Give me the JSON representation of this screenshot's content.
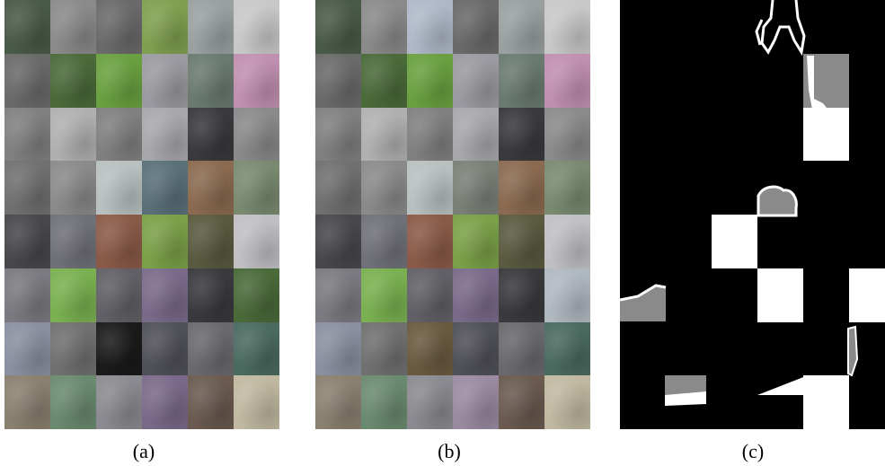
{
  "captions": {
    "a": "(a)",
    "b": "(b)",
    "c": "(c)"
  },
  "grid": {
    "rows": 8,
    "cols": 6
  },
  "patches_a": [
    "#4a5a48",
    "#8a8a8a",
    "#6a6a6a",
    "#7fa050",
    "#9aa0a0",
    "#c8c8c8",
    "#6a6a6a",
    "#4a6a3a",
    "#6aa040",
    "#9a9aa0",
    "#6a7a70",
    "#c090b0",
    "#808080",
    "#b0b0b0",
    "#808080",
    "#a8a8ac",
    "#3a3a3e",
    "#8a8a8a",
    "#707070",
    "#8a8a8a",
    "#b8c0c0",
    "#5a7078",
    "#8a6a50",
    "#7a8a70",
    "#48484c",
    "#707078",
    "#8a5a48",
    "#7aa048",
    "#5a5a40",
    "#c0c0c4",
    "#7a7a80",
    "#7ab050",
    "#606066",
    "#7a6a8a",
    "#3a3a3e",
    "#4a6a3a",
    "#8a90a0",
    "#707070",
    "#1a1a1a",
    "#505058",
    "#6a6a6e",
    "#4a6a60",
    "#8a8070",
    "#6a8a70",
    "#8a8a90",
    "#7a6a8a",
    "#6a5a50",
    "#c0b8a0"
  ],
  "patches_b": [
    "#4a5a48",
    "#8a8a8a",
    "#b0b8c8",
    "#6a6a6a",
    "#9aa0a0",
    "#c8c8c8",
    "#6a6a6a",
    "#4a6a3a",
    "#6aa040",
    "#9a9aa0",
    "#6a7a70",
    "#c090b0",
    "#808080",
    "#b0b0b0",
    "#808080",
    "#a8a8ac",
    "#3a3a3e",
    "#8a8a8a",
    "#707070",
    "#8a8a8a",
    "#b8c0c0",
    "#7a8078",
    "#8a6a50",
    "#7a8a70",
    "#48484c",
    "#707078",
    "#8a5a48",
    "#7aa048",
    "#5a5a40",
    "#c0c0c4",
    "#7a7a80",
    "#7ab050",
    "#606066",
    "#7a6a8a",
    "#3a3a3e",
    "#b0b8c0",
    "#8a90a0",
    "#707070",
    "#6a5a40",
    "#505058",
    "#6a6a6e",
    "#4a6a60",
    "#8a8070",
    "#6a8a70",
    "#8a8a90",
    "#9a8aa0",
    "#6a5a50",
    "#c0b8a0"
  ],
  "mask_cells": [
    {
      "row": 1,
      "col": 4,
      "tone": "gray"
    },
    {
      "row": 2,
      "col": 4,
      "tone": "white"
    },
    {
      "row": 4,
      "col": 2,
      "tone": "white"
    },
    {
      "row": 5,
      "col": 3,
      "tone": "white"
    },
    {
      "row": 5,
      "col": 5,
      "tone": "white"
    },
    {
      "row": 7,
      "col": 4,
      "tone": "white"
    }
  ]
}
